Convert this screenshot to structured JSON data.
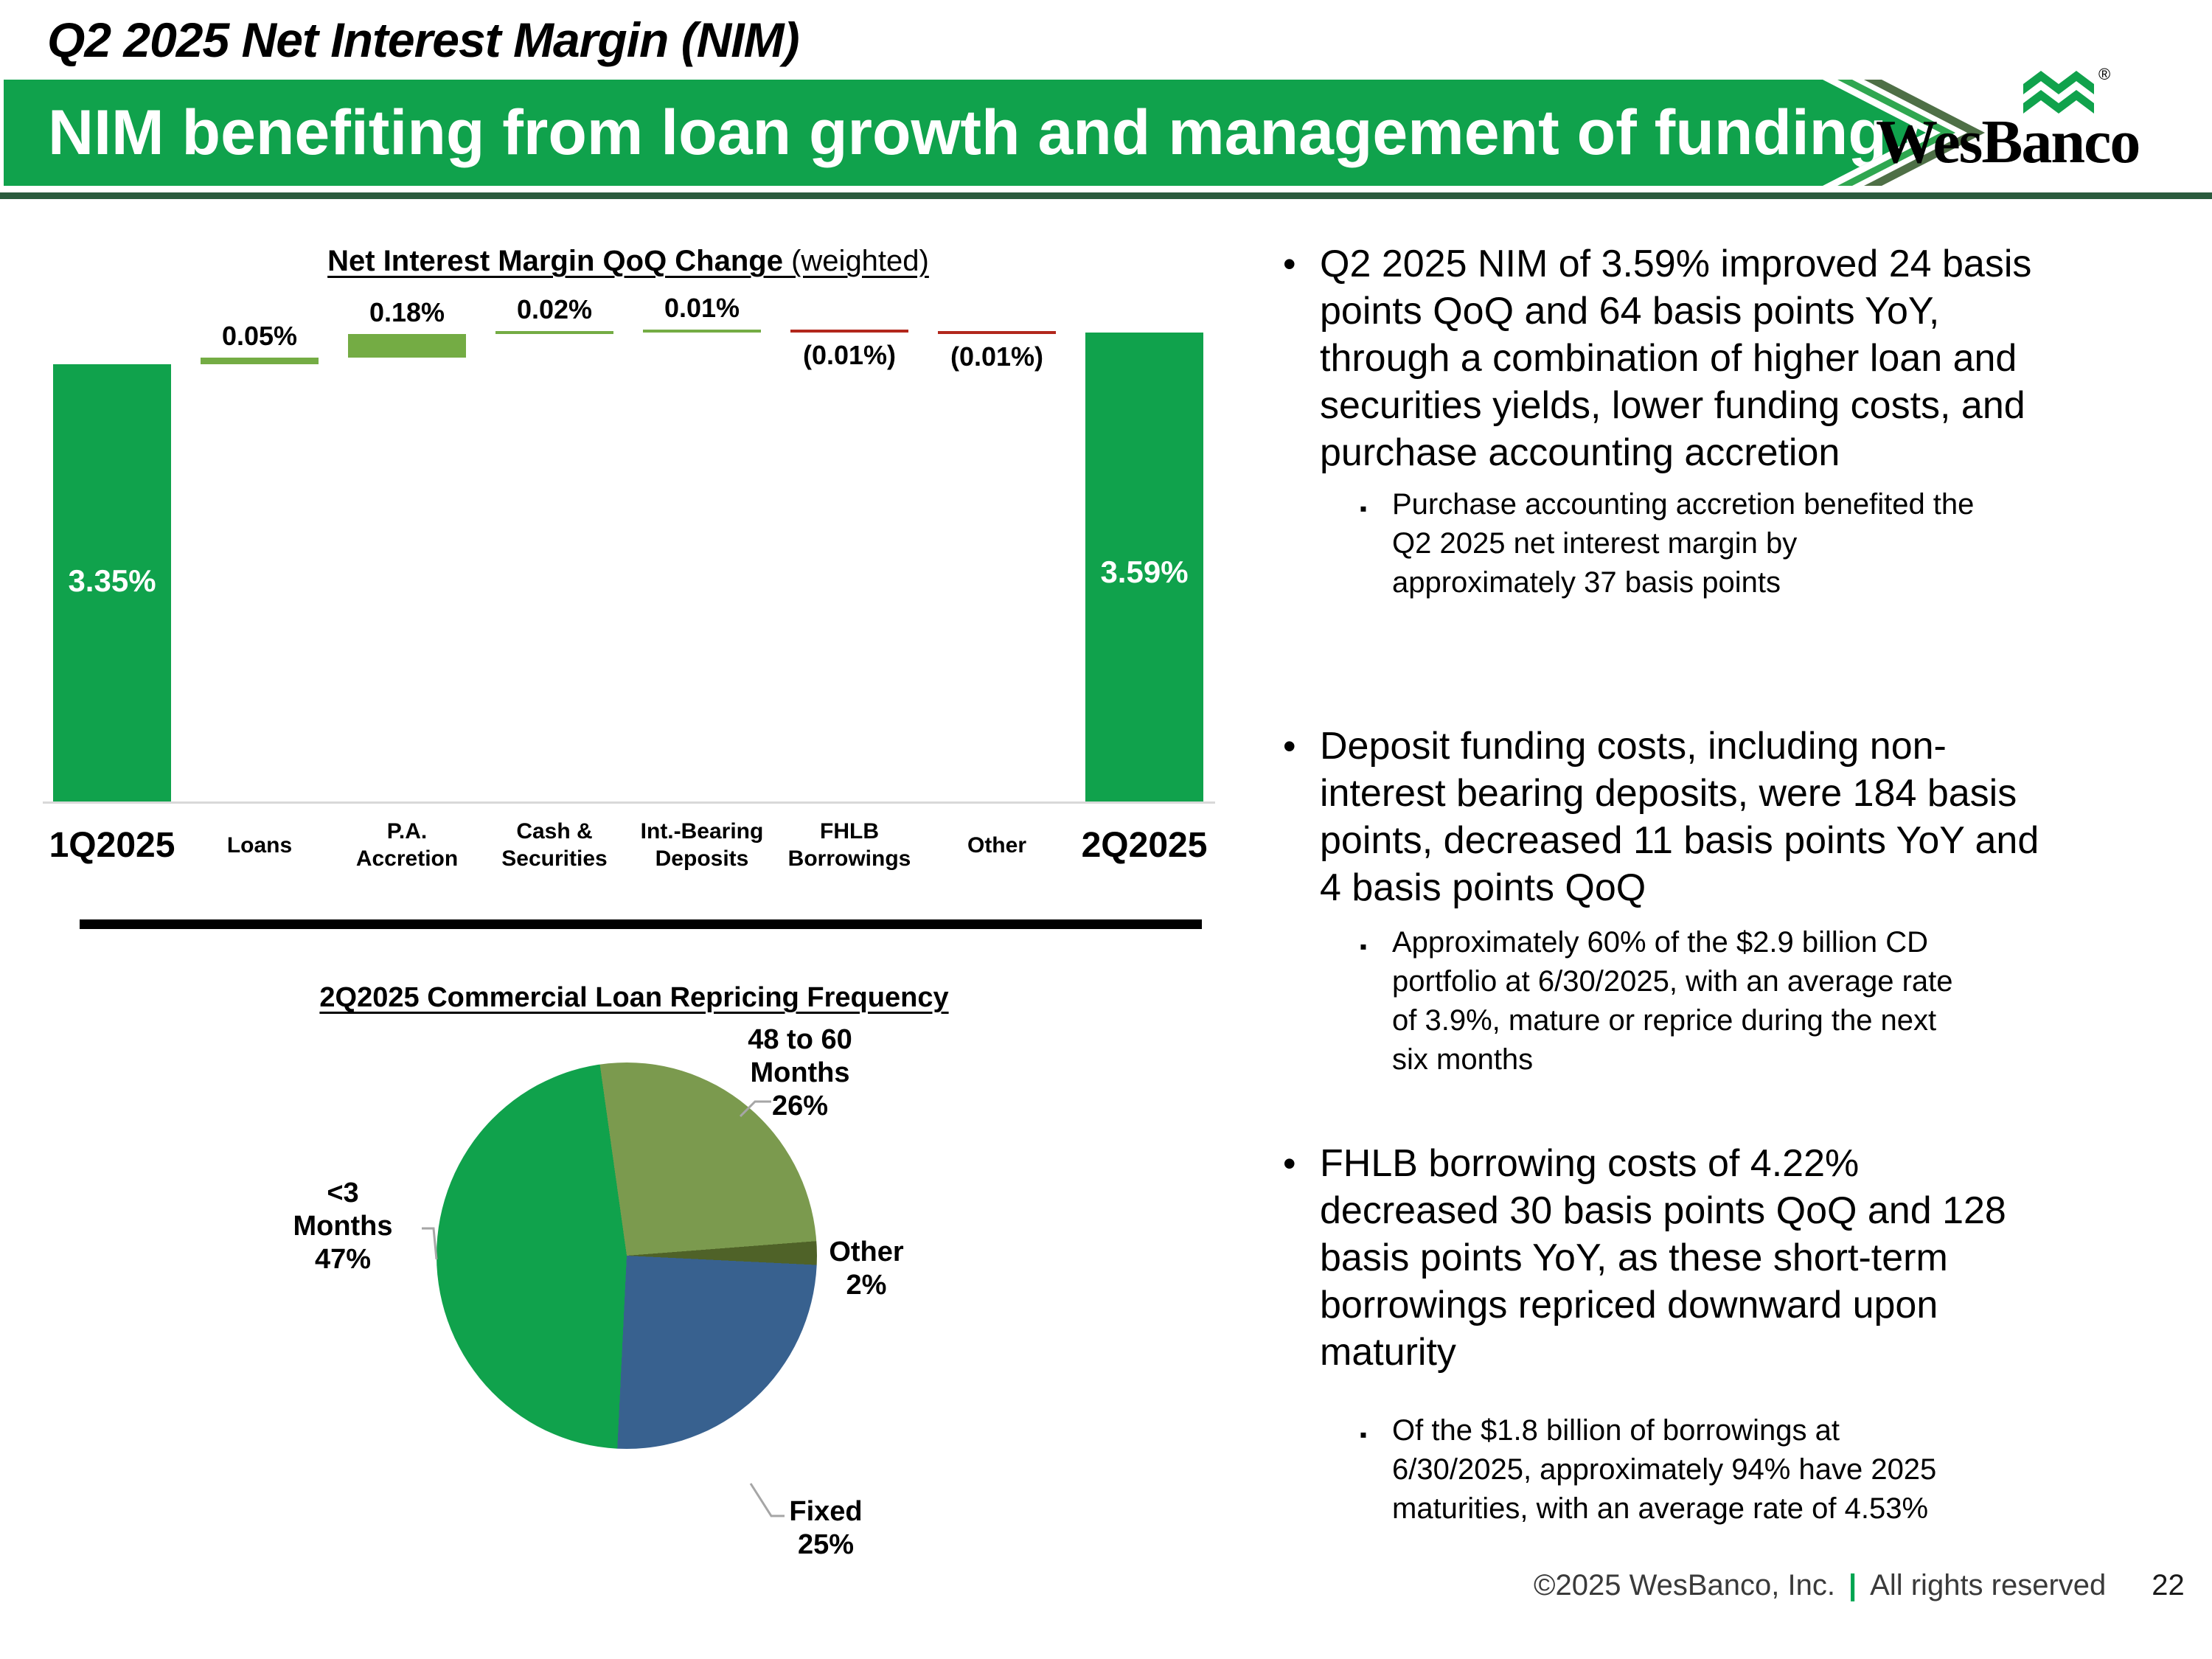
{
  "slide_title": "Q2 2025 Net Interest Margin (NIM)",
  "banner": {
    "text": "NIM benefiting from loan growth and management of funding costs",
    "bg": "#10A24C",
    "rule_color": "#2A5B3D",
    "chevron_bright": "#2FA750",
    "chevron_dark": "#4E6F46"
  },
  "logo": {
    "text": "WesBanco",
    "registered": "®",
    "mark_color": "#10A24C"
  },
  "chart_data": [
    {
      "type": "bar",
      "subtype": "waterfall",
      "title": "Net Interest Margin QoQ Change",
      "title_note": " (weighted)",
      "ylabel": "",
      "ylim": [
        0,
        3.7
      ],
      "axis_color": "#D9D9D9",
      "bars": [
        {
          "label": "1Q2025",
          "value": 3.35,
          "kind": "total",
          "display": "3.35%"
        },
        {
          "label": "Loans",
          "value": 0.05,
          "kind": "delta",
          "display": "0.05%"
        },
        {
          "label": "P.A. Accretion",
          "value": 0.18,
          "kind": "delta",
          "display": "0.18%"
        },
        {
          "label": "Cash & Securities",
          "value": 0.02,
          "kind": "delta",
          "display": "0.02%"
        },
        {
          "label": "Int.-Bearing Deposits",
          "value": 0.01,
          "kind": "delta",
          "display": "0.01%"
        },
        {
          "label": "FHLB Borrowings",
          "value": -0.01,
          "kind": "delta",
          "display": "(0.01%)"
        },
        {
          "label": "Other",
          "value": -0.01,
          "kind": "delta",
          "display": "(0.01%)"
        },
        {
          "label": "2Q2025",
          "value": 3.59,
          "kind": "total",
          "display": "3.59%"
        }
      ],
      "x_labels": [
        "1Q2025",
        "Loans",
        "P.A.\nAccretion",
        "Cash &\nSecurities",
        "Int.-Bearing\nDeposits",
        "FHLB\nBorrowings",
        "Other",
        "2Q2025"
      ],
      "colors": {
        "total": "#10A24C",
        "increase": "#74AC44",
        "decrease": "#B2271C"
      }
    },
    {
      "type": "pie",
      "title": "2Q2025 Commercial Loan Repricing Frequency",
      "start_angle_deg": -8,
      "legend_position": "callouts",
      "slices": [
        {
          "label": "48 to 60 Months",
          "pct": 26,
          "color": "#7B9A4E",
          "callout": "48 to 60\nMonths\n26%"
        },
        {
          "label": "Other",
          "pct": 2,
          "color": "#4F6228",
          "callout": "Other\n2%"
        },
        {
          "label": "Fixed",
          "pct": 25,
          "color": "#38618F",
          "callout": "Fixed\n25%"
        },
        {
          "label": "<3 Months",
          "pct": 47,
          "color": "#10A24C",
          "callout": "<3\nMonths\n47%"
        }
      ]
    }
  ],
  "bullets": [
    {
      "level": 1,
      "marker": "•",
      "text": "Q2 2025 NIM of 3.59% improved 24 basis\npoints QoQ and 64 basis points YoY,\nthrough a combination of higher loan and\nsecurities yields, lower funding costs, and\npurchase accounting accretion"
    },
    {
      "level": 2,
      "marker": "▪",
      "text": "Purchase accounting accretion benefited the\nQ2 2025 net interest margin by\napproximately 37 basis points"
    },
    {
      "level": 1,
      "marker": "•",
      "text": "Deposit funding costs, including non-\ninterest bearing deposits, were 184 basis\npoints, decreased 11 basis points YoY and\n4 basis points QoQ"
    },
    {
      "level": 2,
      "marker": "▪",
      "text": "Approximately 60% of the $2.9 billion CD\nportfolio at 6/30/2025, with an average rate\nof 3.9%, mature or reprice during the next\nsix months"
    },
    {
      "level": 1,
      "marker": "•",
      "text": "FHLB borrowing costs of 4.22%\ndecreased 30 basis points QoQ and 128\nbasis points YoY, as these short-term\nborrowings repriced downward upon\nmaturity"
    },
    {
      "level": 2,
      "marker": "▪",
      "text": "Of the $1.8 billion of borrowings at\n6/30/2025, approximately 94% have 2025\nmaturities, with an average rate of 4.53%"
    }
  ],
  "footer": {
    "copyright": "©2025 WesBanco, Inc.",
    "separator": "|",
    "separator_color": "#00A551",
    "rights": "All rights reserved",
    "page_number": "22"
  },
  "colors": {
    "leader_gray": "#A6A6A6"
  }
}
